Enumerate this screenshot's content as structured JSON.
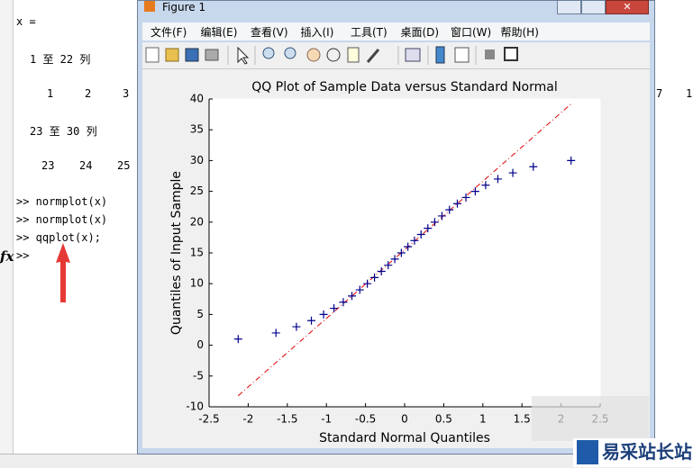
{
  "console": {
    "header": "x =",
    "range1": "1 至 22 列",
    "row1": [
      "1",
      "2",
      "3"
    ],
    "row1_tail": [
      "7",
      "1"
    ],
    "range2": "23 至 30 列",
    "row2": [
      "23",
      "24",
      "25"
    ],
    "commands": [
      ">> normplot(x)",
      ">> normplot(x)",
      ">> qqplot(x);",
      ">>"
    ],
    "fx": "fx"
  },
  "window": {
    "title": "Figure 1",
    "menu": [
      "文件(F)",
      "编辑(E)",
      "查看(V)",
      "插入(I)",
      "工具(T)",
      "桌面(D)",
      "窗口(W)",
      "帮助(H)"
    ]
  },
  "chart_data": {
    "type": "scatter",
    "title": "QQ Plot of Sample Data versus Standard Normal",
    "x_label": "Standard Normal Quantiles",
    "y_label": "Quantiles of Input Sample",
    "x": [
      -2.128,
      -1.645,
      -1.383,
      -1.192,
      -1.036,
      -0.903,
      -0.784,
      -0.674,
      -0.573,
      -0.477,
      -0.385,
      -0.297,
      -0.21,
      -0.126,
      -0.042,
      0.042,
      0.126,
      0.21,
      0.297,
      0.385,
      0.477,
      0.573,
      0.674,
      0.784,
      0.903,
      1.036,
      1.192,
      1.383,
      1.645,
      2.128
    ],
    "values": [
      1,
      2,
      3,
      4,
      5,
      6,
      7,
      8,
      9,
      10,
      11,
      12,
      13,
      14,
      15,
      16,
      17,
      18,
      19,
      20,
      21,
      22,
      23,
      24,
      25,
      26,
      27,
      28,
      29,
      30
    ],
    "color": "#00008b",
    "reference_line": {
      "x": [
        -2.128,
        2.128
      ],
      "values": [
        -8.2,
        39.2
      ],
      "color": "#e00000"
    },
    "xlim": [
      -2.5,
      2.5
    ],
    "xticks": [
      -2.5,
      -2,
      -1.5,
      -1,
      -0.5,
      0,
      0.5,
      1,
      1.5,
      2,
      2.5
    ],
    "ylim": [
      -10,
      40
    ],
    "yticks": [
      -10,
      -5,
      0,
      5,
      10,
      15,
      20,
      25,
      30,
      35,
      40
    ]
  },
  "watermark": "易采站长站"
}
